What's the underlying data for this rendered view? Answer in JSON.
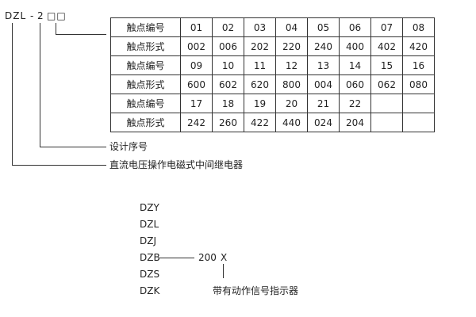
{
  "code": {
    "prefix": "DZL",
    "dash": "-",
    "digit": "2",
    "boxes": "□□"
  },
  "table": {
    "rows": [
      [
        "触点编号",
        "01",
        "02",
        "03",
        "04",
        "05",
        "06",
        "07",
        "08"
      ],
      [
        "触点形式",
        "002",
        "006",
        "202",
        "220",
        "240",
        "400",
        "402",
        "420"
      ],
      [
        "触点编号",
        "09",
        "10",
        "11",
        "12",
        "13",
        "14",
        "15",
        "16"
      ],
      [
        "触点形式",
        "600",
        "602",
        "620",
        "800",
        "004",
        "060",
        "062",
        "080"
      ],
      [
        "触点编号",
        "17",
        "18",
        "19",
        "20",
        "21",
        "22",
        "",
        ""
      ],
      [
        "触点形式",
        "242",
        "260",
        "422",
        "440",
        "024",
        "204",
        "",
        ""
      ]
    ]
  },
  "labels": {
    "design_no": "设计序号",
    "relay": "直流电压操作电磁式中间继电器"
  },
  "series": {
    "models": [
      "DZY",
      "DZL",
      "DZJ",
      "DZB",
      "DZS",
      "DZK"
    ],
    "suffix_num": "200",
    "suffix_x": "X",
    "indicator": "带有动作信号指示器"
  }
}
